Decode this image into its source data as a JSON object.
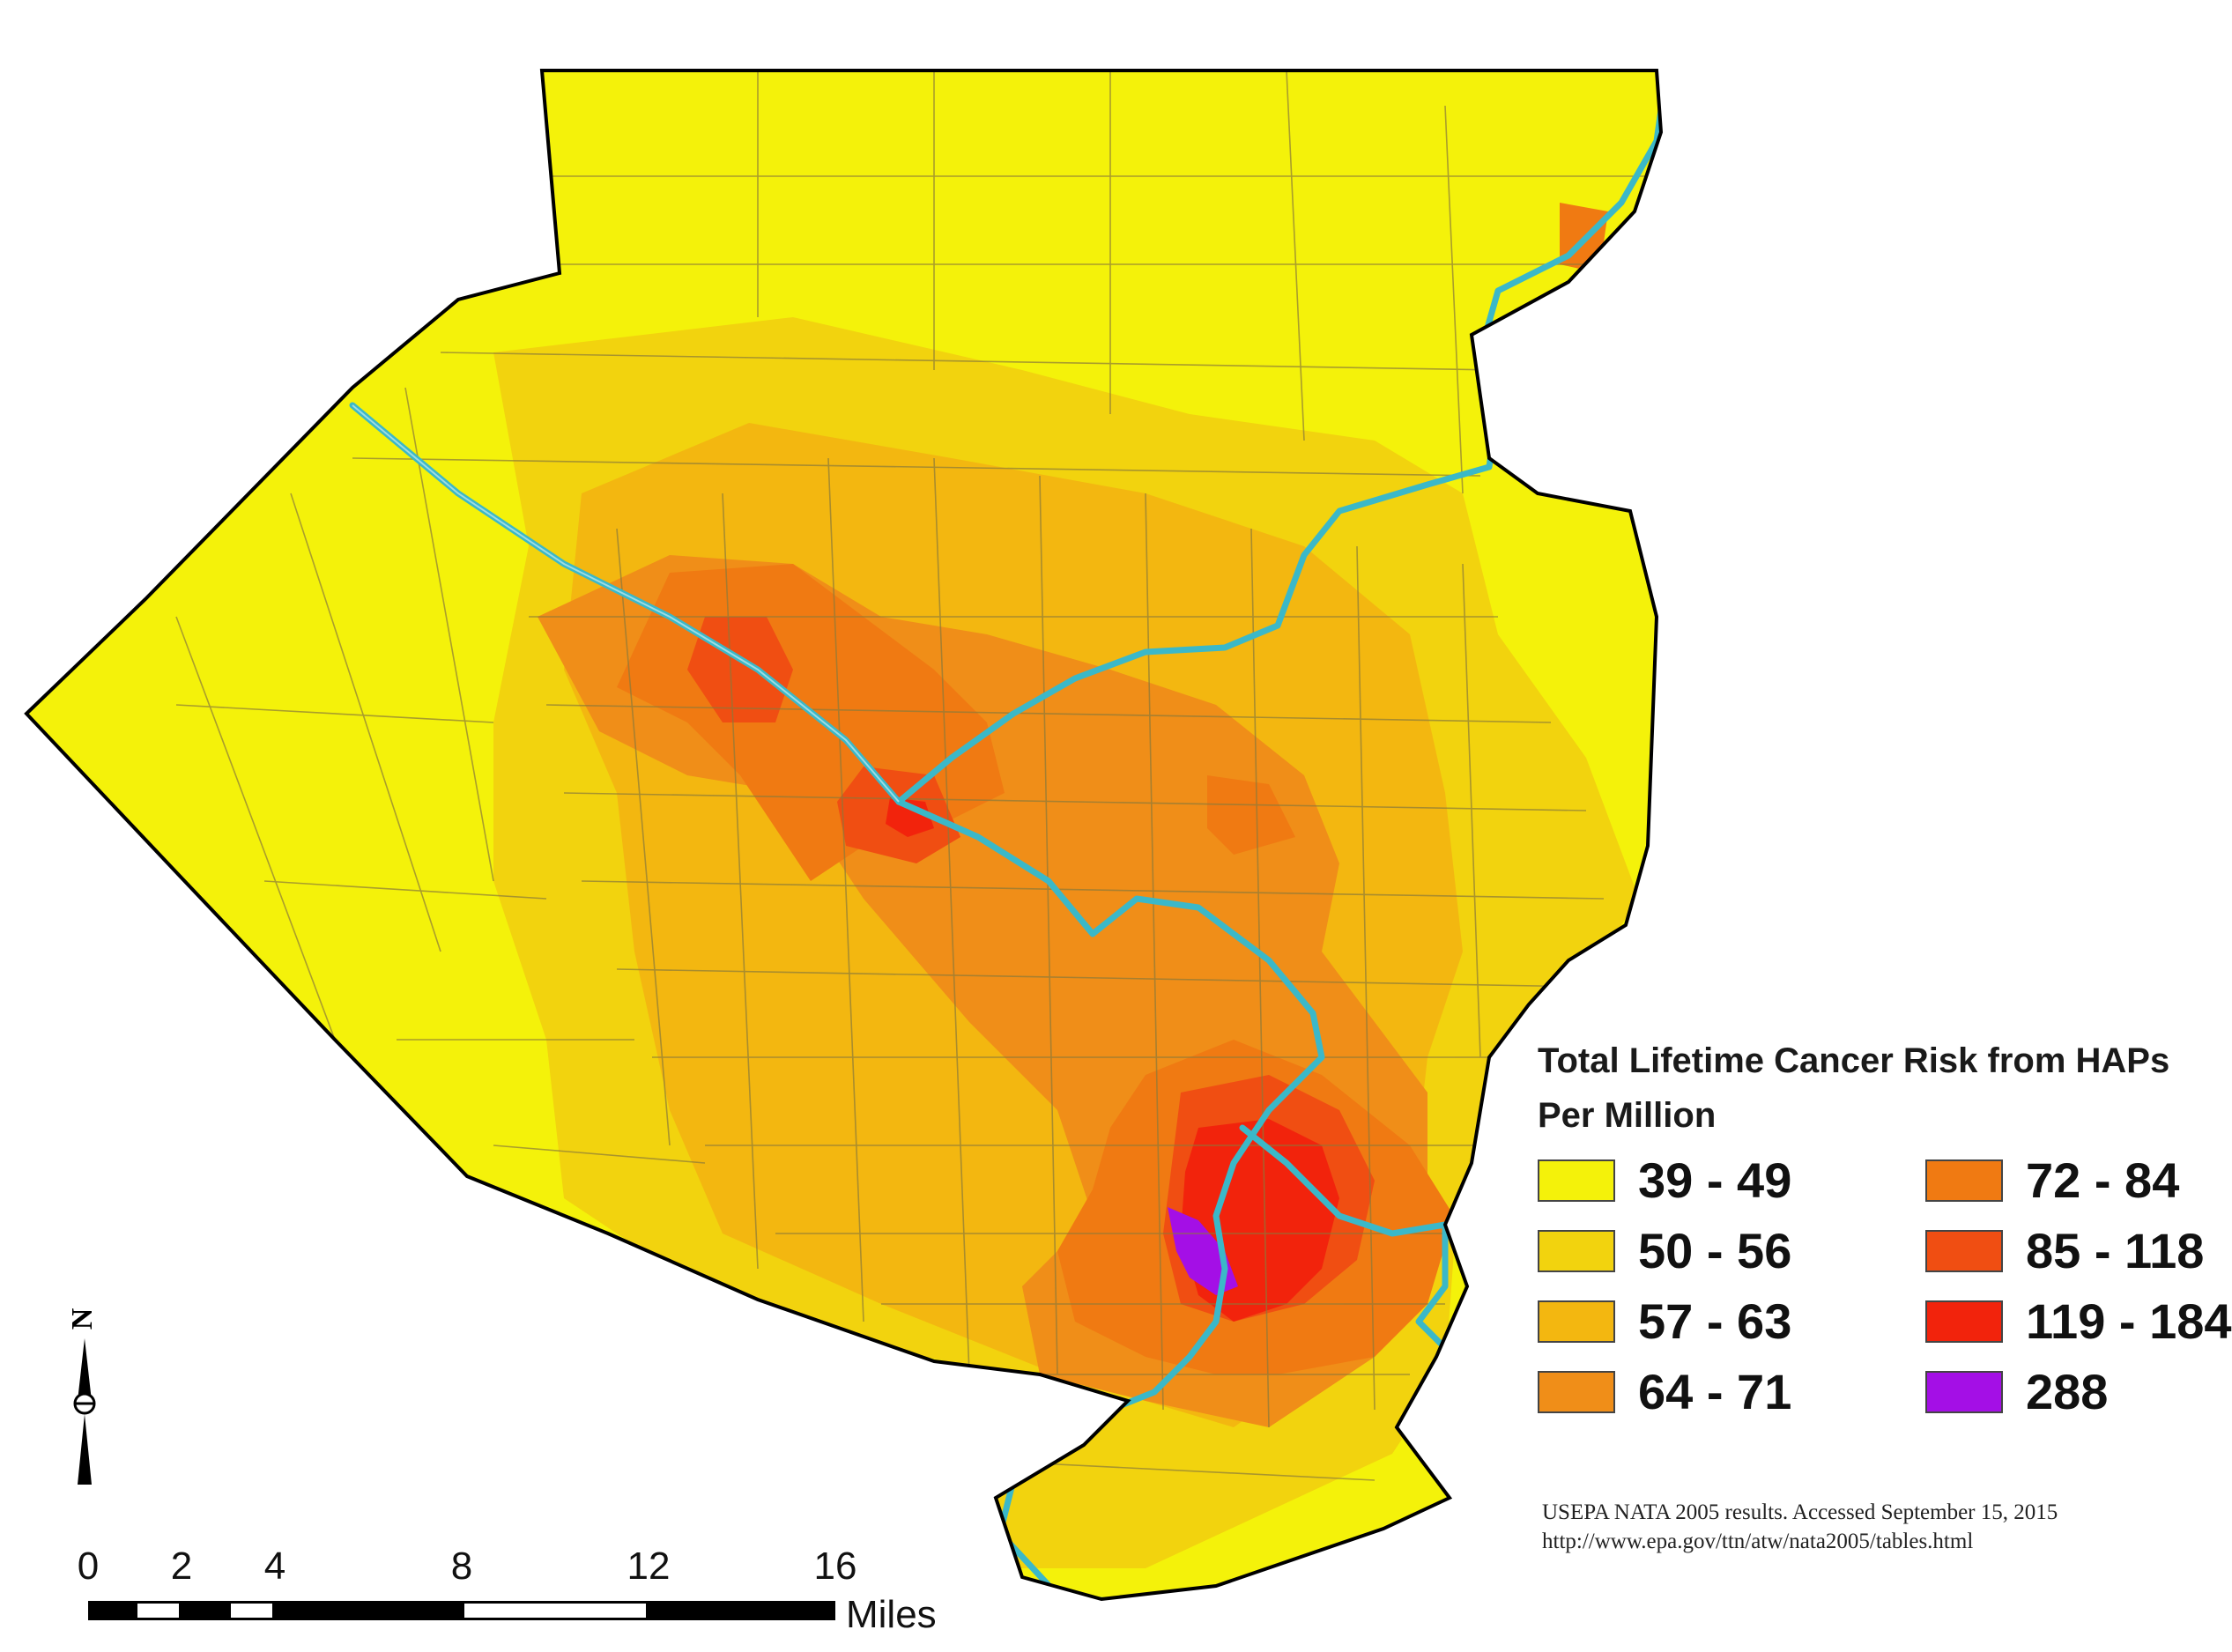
{
  "legend": {
    "title": "Total Lifetime Cancer Risk from HAPs",
    "subtitle": "Per Million",
    "items": [
      {
        "label": "39 - 49",
        "color": "#f4f20a"
      },
      {
        "label": "72 - 84",
        "color": "#f07a12"
      },
      {
        "label": "50 - 56",
        "color": "#f2d30e"
      },
      {
        "label": "85 - 118",
        "color": "#f04e12"
      },
      {
        "label": "57 - 63",
        "color": "#f3b710"
      },
      {
        "label": "119 - 184",
        "color": "#f2230c"
      },
      {
        "label": "64 - 71",
        "color": "#f08e18"
      },
      {
        "label": "288",
        "color": "#a40fe6"
      }
    ]
  },
  "source": {
    "line1": "USEPA NATA 2005 results.  Accessed September 15, 2015",
    "line2": "http://www.epa.gov/ttn/atw/nata2005/tables.html"
  },
  "north_arrow": {
    "label": "N"
  },
  "scale_bar": {
    "ticks": [
      "0",
      "2",
      "4",
      "8",
      "12",
      "16"
    ],
    "units": "Miles"
  },
  "colors": {
    "river": "#3bb8c8",
    "boundary": "#000000",
    "tract_line": "#8a7a3a"
  }
}
